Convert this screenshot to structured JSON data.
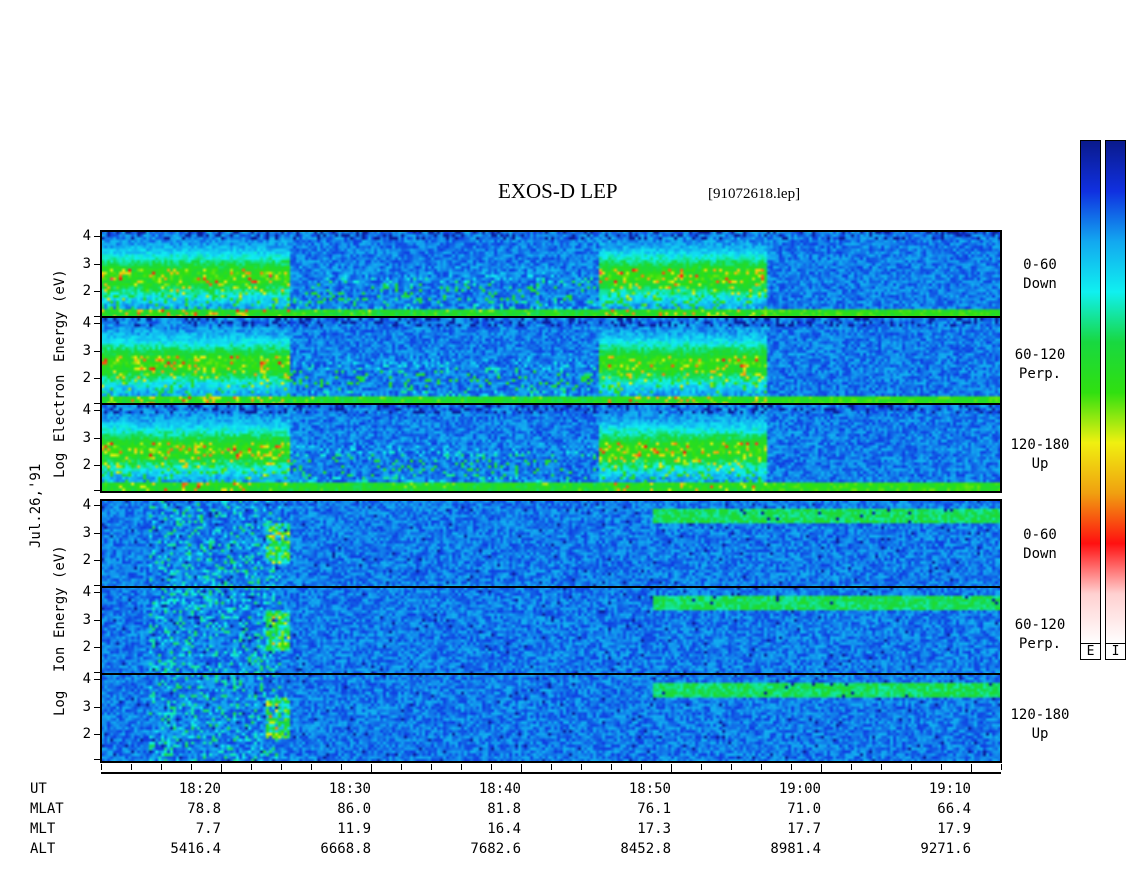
{
  "chart_data": {
    "type": "heatmap",
    "title": "EXOS-D LEP",
    "file_name": "[91072618.lep]",
    "date_label": "Jul.26,'91",
    "x_axis": {
      "label": "UT",
      "major_ticks": [
        "18:20",
        "18:30",
        "18:40",
        "18:50",
        "19:00",
        "19:10"
      ],
      "range": [
        "18:12",
        "19:12"
      ]
    },
    "ephemeris": [
      {
        "label": "MLAT",
        "values": [
          "78.8",
          "86.0",
          "81.8",
          "76.1",
          "71.0",
          "66.4"
        ]
      },
      {
        "label": "MLT",
        "values": [
          "7.7",
          "11.9",
          "16.4",
          "17.3",
          "17.7",
          "17.9"
        ]
      },
      {
        "label": "ALT",
        "values": [
          "5416.4",
          "6668.8",
          "7682.6",
          "8452.8",
          "8981.4",
          "9271.6"
        ]
      }
    ],
    "groups": [
      {
        "species": "Electron",
        "ylabel_words": [
          "Log",
          "Electron",
          "Energy (eV)"
        ],
        "panels": [
          {
            "pitch_angle": "0-60",
            "direction": "Down",
            "y_ticks": [
              "4",
              "3",
              "2"
            ]
          },
          {
            "pitch_angle": "60-120",
            "direction": "Perp.",
            "y_ticks": [
              "4",
              "3",
              "2"
            ]
          },
          {
            "pitch_angle": "120-180",
            "direction": "Up",
            "y_ticks": [
              "4",
              "3",
              "2"
            ]
          }
        ]
      },
      {
        "species": "Ion",
        "ylabel_words": [
          "Log",
          "Ion",
          "Energy (eV)"
        ],
        "panels": [
          {
            "pitch_angle": "0-60",
            "direction": "Down",
            "y_ticks": [
              "4",
              "3",
              "2"
            ]
          },
          {
            "pitch_angle": "60-120",
            "direction": "Perp.",
            "y_ticks": [
              "4",
              "3",
              "2"
            ]
          },
          {
            "pitch_angle": "120-180",
            "direction": "Up",
            "y_ticks": [
              "4",
              "3",
              "2"
            ]
          }
        ]
      }
    ],
    "ylim": [
      1,
      4.2
    ],
    "colorbars": [
      {
        "key": "E",
        "colors": [
          "#0a1a8c",
          "#1030e0",
          "#12a8f0",
          "#10f0f0",
          "#18d840",
          "#30e010",
          "#f0f010",
          "#f0a010",
          "#ff1010",
          "#ffd0d0",
          "#ffffff"
        ]
      },
      {
        "key": "I",
        "colors": [
          "#0a1a8c",
          "#1030e0",
          "#12a8f0",
          "#10f0f0",
          "#18d840",
          "#30e010",
          "#f0f010",
          "#f0a010",
          "#ff1010",
          "#ffd0d0",
          "#ffffff"
        ]
      }
    ]
  }
}
